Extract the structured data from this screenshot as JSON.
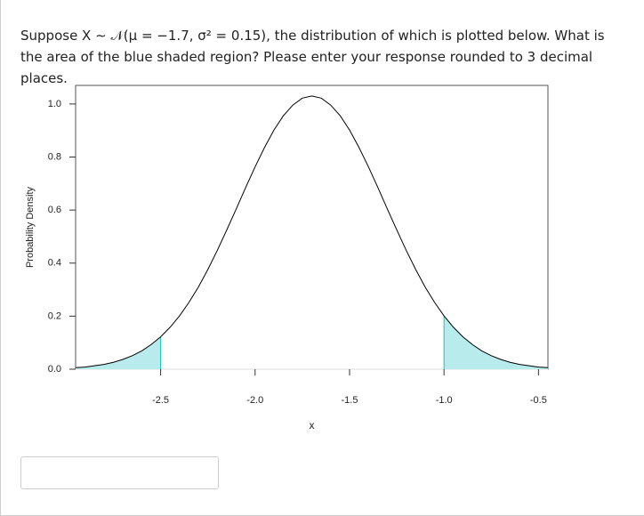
{
  "question": {
    "text": "Suppose X ∼ 𝒩(μ = −1.7, σ² = 0.15), the distribution of which is plotted below. What is the area of the blue shaded region? Please enter your response rounded to 3 decimal places."
  },
  "chart_data": {
    "type": "line",
    "x": [
      -2.95,
      -2.9,
      -2.85,
      -2.8,
      -2.75,
      -2.7,
      -2.65,
      -2.6,
      -2.55,
      -2.5,
      -2.45,
      -2.4,
      -2.35,
      -2.3,
      -2.25,
      -2.2,
      -2.15,
      -2.1,
      -2.05,
      -2.0,
      -1.95,
      -1.9,
      -1.85,
      -1.8,
      -1.75,
      -1.7,
      -1.65,
      -1.6,
      -1.55,
      -1.5,
      -1.45,
      -1.4,
      -1.35,
      -1.3,
      -1.25,
      -1.2,
      -1.15,
      -1.1,
      -1.05,
      -1.0,
      -0.95,
      -0.9,
      -0.85,
      -0.8,
      -0.75,
      -0.7,
      -0.65,
      -0.6,
      -0.55,
      -0.5,
      -0.45
    ],
    "values": [
      0.006,
      0.008,
      0.013,
      0.018,
      0.026,
      0.037,
      0.051,
      0.069,
      0.093,
      0.122,
      0.158,
      0.201,
      0.252,
      0.31,
      0.376,
      0.448,
      0.525,
      0.604,
      0.685,
      0.763,
      0.836,
      0.902,
      0.956,
      0.996,
      1.022,
      1.03,
      1.022,
      0.996,
      0.956,
      0.902,
      0.836,
      0.763,
      0.685,
      0.604,
      0.525,
      0.448,
      0.376,
      0.31,
      0.252,
      0.201,
      0.158,
      0.122,
      0.093,
      0.069,
      0.051,
      0.037,
      0.026,
      0.018,
      0.013,
      0.008,
      0.006
    ],
    "color": "#000000",
    "shade": {
      "below": -2.5,
      "above": -1.0,
      "color": "#b8ecec",
      "edge_color": "#1cc0c8"
    },
    "xlim": [
      -2.95,
      -0.45
    ],
    "ylim": [
      0,
      1.07
    ],
    "xticks": [
      -2.5,
      {
        "value": -2.0,
        "label": "-2.0"
      },
      -1.5,
      {
        "value": -1.0,
        "label": "-1.0"
      },
      -0.5
    ],
    "yticks": [
      {
        "value": 0,
        "label": "0.0"
      },
      0.2,
      0.4,
      0.6,
      0.8,
      {
        "value": 1.0,
        "label": "1.0"
      }
    ],
    "x_label": "x",
    "y_label": "Probability Density"
  }
}
